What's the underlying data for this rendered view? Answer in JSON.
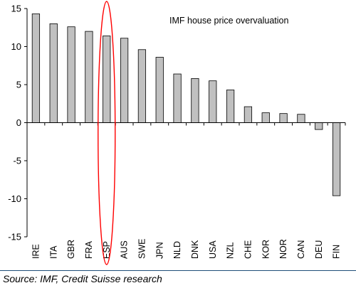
{
  "chart_data": {
    "type": "bar",
    "title": "IMF house price overvaluation",
    "categories": [
      "IRE",
      "ITA",
      "GBR",
      "FRA",
      "ESP",
      "AUS",
      "SWE",
      "JPN",
      "NLD",
      "DNK",
      "USA",
      "NZL",
      "CHE",
      "KOR",
      "NOR",
      "CAN",
      "DEU",
      "FIN"
    ],
    "values": [
      14.3,
      13.0,
      12.6,
      12.0,
      11.4,
      11.1,
      9.6,
      8.6,
      6.4,
      5.8,
      5.5,
      4.3,
      2.1,
      1.3,
      1.2,
      1.1,
      -0.9,
      -9.6
    ],
    "ylim": [
      -15,
      15
    ],
    "yticks": [
      15,
      10,
      5,
      0,
      -5,
      -10,
      -15
    ],
    "xlabel": "",
    "ylabel": "",
    "grid": false,
    "bar_color": "#c0c0c0",
    "bar_edge_color": "#000000",
    "highlight": {
      "category": "ESP",
      "shape": "ellipse",
      "color": "#ff0000"
    }
  },
  "source_note": "Source: IMF, Credit Suisse research"
}
